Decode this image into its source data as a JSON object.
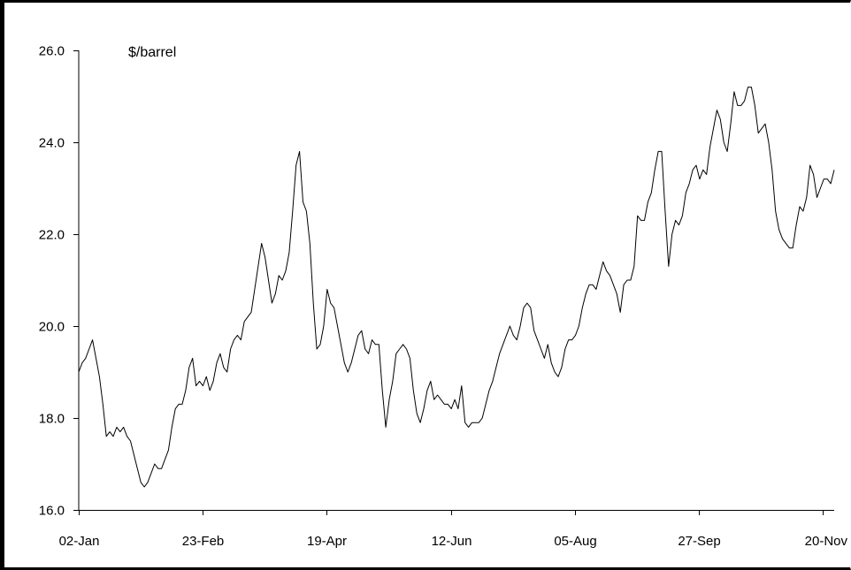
{
  "chart_data": {
    "type": "line",
    "title": "",
    "unit_label": "$/barrel",
    "xlabel": "",
    "ylabel": "",
    "ylim": [
      16.0,
      26.0
    ],
    "y_ticks": [
      "16.0",
      "18.0",
      "20.0",
      "22.0",
      "24.0",
      "26.0"
    ],
    "x_ticks": [
      "02-Jan",
      "23-Feb",
      "19-Apr",
      "12-Jun",
      "05-Aug",
      "27-Sep",
      "20-Nov"
    ],
    "grid": false,
    "legend": "none",
    "line_color": "#000000",
    "series": [
      {
        "values": [
          19.0,
          19.2,
          19.3,
          19.5,
          19.7,
          19.3,
          18.9,
          18.3,
          17.6,
          17.7,
          17.6,
          17.8,
          17.7,
          17.8,
          17.6,
          17.5,
          17.2,
          16.9,
          16.6,
          16.5,
          16.6,
          16.8,
          17.0,
          16.9,
          16.9,
          17.1,
          17.3,
          17.8,
          18.2,
          18.3,
          18.3,
          18.6,
          19.1,
          19.3,
          18.7,
          18.8,
          18.7,
          18.9,
          18.6,
          18.8,
          19.2,
          19.4,
          19.1,
          19.0,
          19.5,
          19.7,
          19.8,
          19.7,
          20.1,
          20.2,
          20.3,
          20.8,
          21.3,
          21.8,
          21.5,
          21.0,
          20.5,
          20.7,
          21.1,
          21.0,
          21.2,
          21.6,
          22.5,
          23.5,
          23.8,
          22.7,
          22.5,
          21.8,
          20.5,
          19.5,
          19.6,
          20.0,
          20.8,
          20.5,
          20.4,
          20.0,
          19.6,
          19.2,
          19.0,
          19.2,
          19.5,
          19.8,
          19.9,
          19.5,
          19.4,
          19.7,
          19.6,
          19.6,
          18.6,
          17.8,
          18.4,
          18.8,
          19.4,
          19.5,
          19.6,
          19.5,
          19.3,
          18.6,
          18.1,
          17.9,
          18.2,
          18.6,
          18.8,
          18.4,
          18.5,
          18.4,
          18.3,
          18.3,
          18.2,
          18.4,
          18.2,
          18.7,
          17.9,
          17.8,
          17.9,
          17.9,
          17.9,
          18.0,
          18.3,
          18.6,
          18.8,
          19.1,
          19.4,
          19.6,
          19.8,
          20.0,
          19.8,
          19.7,
          20.0,
          20.4,
          20.5,
          20.4,
          19.9,
          19.7,
          19.5,
          19.3,
          19.6,
          19.2,
          19.0,
          18.9,
          19.1,
          19.5,
          19.7,
          19.7,
          19.8,
          20.0,
          20.4,
          20.7,
          20.9,
          20.9,
          20.8,
          21.1,
          21.4,
          21.2,
          21.1,
          20.9,
          20.7,
          20.3,
          20.9,
          21.0,
          21.0,
          21.3,
          22.4,
          22.3,
          22.3,
          22.7,
          22.9,
          23.4,
          23.8,
          23.8,
          22.5,
          21.3,
          22.0,
          22.3,
          22.2,
          22.4,
          22.9,
          23.1,
          23.4,
          23.5,
          23.2,
          23.4,
          23.3,
          23.9,
          24.3,
          24.7,
          24.5,
          24.0,
          23.8,
          24.4,
          25.1,
          24.8,
          24.8,
          24.9,
          25.2,
          25.2,
          24.8,
          24.2,
          24.3,
          24.4,
          24.0,
          23.4,
          22.5,
          22.1,
          21.9,
          21.8,
          21.7,
          21.7,
          22.2,
          22.6,
          22.5,
          22.8,
          23.5,
          23.3,
          22.8,
          23.0,
          23.2,
          23.2,
          23.1,
          23.4
        ]
      }
    ]
  }
}
